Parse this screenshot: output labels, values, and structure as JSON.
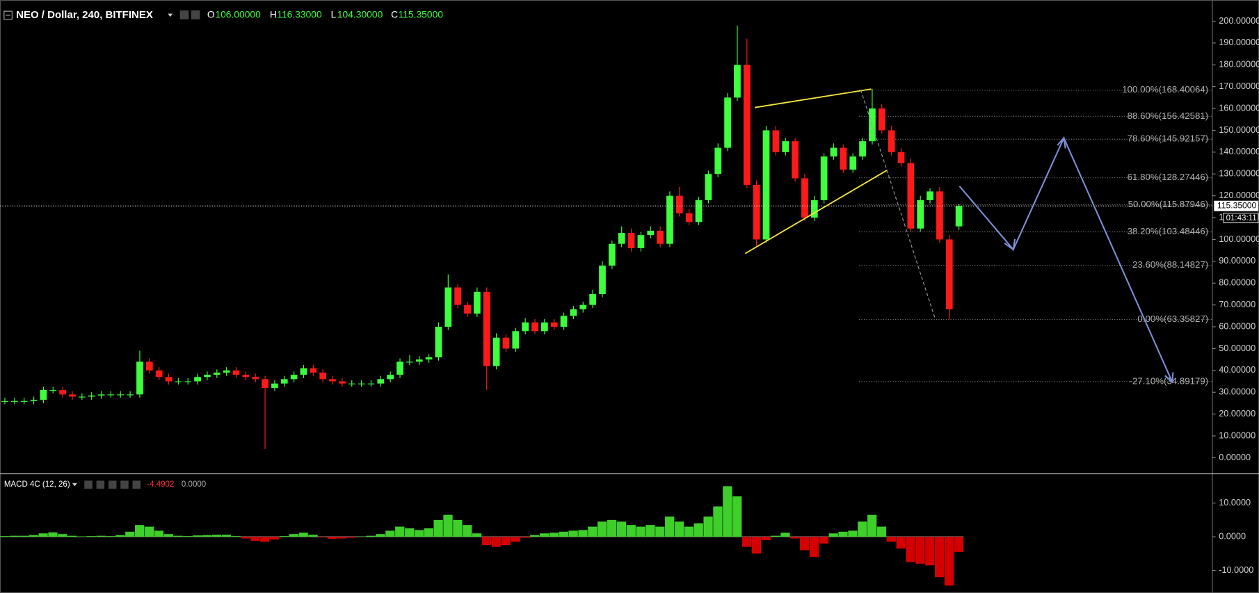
{
  "chart_data": {
    "type": "candlestick",
    "header": {
      "symbol": "NEO / Dollar, 240, BITFINEX",
      "o_label": "O",
      "open": "106.00000",
      "h_label": "H",
      "high": "116.33000",
      "l_label": "L",
      "low": "104.30000",
      "c_label": "C",
      "close": "115.35000"
    },
    "up_color": "#3dff3d",
    "down_color": "#ff1a1a",
    "xlim": [
      -0.5,
      125.3
    ],
    "ylim": [
      -7.2,
      209.7
    ],
    "yticks": [
      {
        "value": 0,
        "label": "0.00000"
      },
      {
        "value": 10,
        "label": "10.00000"
      },
      {
        "value": 20,
        "label": "20.00000"
      },
      {
        "value": 30,
        "label": "30.00000"
      },
      {
        "value": 40,
        "label": "40.00000"
      },
      {
        "value": 50,
        "label": "50.00000"
      },
      {
        "value": 60,
        "label": "60.00000"
      },
      {
        "value": 70,
        "label": "70.00000"
      },
      {
        "value": 80,
        "label": "80.00000"
      },
      {
        "value": 90,
        "label": "90.00000"
      },
      {
        "value": 100,
        "label": "100.00000"
      },
      {
        "value": 110,
        "label": "110.00000"
      },
      {
        "value": 120,
        "label": "120.00000"
      },
      {
        "value": 130,
        "label": "130.00000"
      },
      {
        "value": 140,
        "label": "140.00000"
      },
      {
        "value": 150,
        "label": "150.00000"
      },
      {
        "value": 160,
        "label": "160.00000"
      },
      {
        "value": 170,
        "label": "170.00000"
      },
      {
        "value": 180,
        "label": "180.00000"
      },
      {
        "value": 190,
        "label": "190.00000"
      },
      {
        "value": 200,
        "label": "200.00000"
      }
    ],
    "open": [
      26,
      26,
      26,
      26,
      26.5,
      31,
      31,
      29,
      28,
      28,
      28.5,
      29,
      29,
      29,
      29,
      44,
      40,
      37,
      35,
      35,
      35,
      37,
      38,
      39,
      40,
      38,
      37,
      36,
      32,
      34,
      36,
      38,
      41,
      39,
      36,
      35,
      34,
      34,
      34,
      34,
      36,
      38,
      44,
      44,
      45,
      46,
      60,
      78,
      70,
      66,
      76,
      42,
      55,
      50,
      58,
      62,
      58,
      62,
      60,
      65,
      68,
      70,
      75,
      88,
      98,
      103,
      96,
      102,
      104,
      98,
      120,
      112,
      108,
      118,
      130,
      142,
      165,
      180,
      125,
      100,
      150,
      140,
      145,
      128,
      110,
      118,
      138,
      142,
      132,
      138,
      145,
      160,
      150,
      140,
      135,
      105,
      118,
      122,
      100,
      106
    ],
    "high": [
      27.5,
      27.5,
      27.5,
      28,
      32.5,
      32.5,
      32.5,
      30.5,
      29.5,
      30,
      30.5,
      30.5,
      30.5,
      30.5,
      49,
      45.5,
      41.5,
      38.5,
      36.5,
      36.5,
      38.5,
      39.5,
      40.5,
      41.5,
      41.5,
      39.5,
      38.5,
      37.5,
      35.5,
      37.5,
      39.5,
      42.5,
      42.5,
      40.5,
      37.5,
      36.5,
      35.5,
      35.5,
      35.5,
      37.5,
      39.5,
      45.5,
      47,
      46.5,
      47.5,
      62,
      84,
      79.5,
      71.5,
      78,
      78,
      57,
      56.5,
      59.5,
      64,
      63.5,
      63.5,
      63.5,
      66.5,
      69.5,
      71.5,
      77,
      90,
      99.5,
      106,
      105,
      103.5,
      106,
      106,
      122,
      124,
      114,
      119.5,
      131.5,
      144,
      167,
      198,
      192,
      127,
      152,
      152,
      146.5,
      146.5,
      130,
      120,
      139.5,
      144,
      143.5,
      139.5,
      146.5,
      169,
      162,
      152,
      142,
      137,
      120,
      123.5,
      124,
      102,
      116.33
    ],
    "low": [
      24.5,
      24.5,
      24.5,
      24.5,
      25,
      29.5,
      27.5,
      26.5,
      26.5,
      26.5,
      27,
      27.5,
      27.5,
      27.5,
      27.5,
      38.5,
      35.5,
      33.5,
      33.5,
      33.5,
      33.5,
      35.5,
      36.5,
      37.5,
      36.5,
      35.5,
      34.5,
      4,
      30.5,
      32.5,
      34.5,
      36.5,
      37.5,
      34.5,
      33.5,
      32.5,
      32.5,
      32.5,
      32.5,
      32.5,
      34.5,
      36.5,
      42.5,
      42.5,
      43.5,
      44.5,
      58.5,
      68.5,
      64.5,
      64.5,
      31,
      40.5,
      48.5,
      48.5,
      56.5,
      56.5,
      56.5,
      58.5,
      58.5,
      63.5,
      66.5,
      68.5,
      73.5,
      86.5,
      96.5,
      94.5,
      94.5,
      100.5,
      96.5,
      96.5,
      110.5,
      106.5,
      106.5,
      116.5,
      128.5,
      140.5,
      163.5,
      123.5,
      97,
      98.5,
      138.5,
      138.5,
      126.5,
      108.5,
      108.5,
      116.5,
      136.5,
      130.5,
      130.5,
      136.5,
      143.5,
      148.5,
      138.5,
      133.5,
      103.5,
      103.5,
      116.5,
      98.5,
      63.3,
      104.3
    ],
    "close": [
      26,
      26,
      26,
      26.5,
      31,
      31,
      29,
      28,
      28,
      28.5,
      29,
      29,
      29,
      29,
      44,
      40,
      37,
      35,
      35,
      35,
      37,
      38,
      39,
      40,
      38,
      37,
      36,
      32,
      34,
      36,
      38,
      41,
      39,
      36,
      35,
      34,
      34,
      34,
      34,
      36,
      38,
      44,
      44,
      45,
      46,
      60,
      78,
      70,
      66,
      76,
      42,
      55,
      50,
      58,
      62,
      58,
      62,
      60,
      65,
      68,
      70,
      75,
      88,
      98,
      103,
      96,
      102,
      104,
      98,
      120,
      112,
      108,
      118,
      130,
      142,
      165,
      180,
      125,
      100,
      150,
      140,
      145,
      128,
      110,
      118,
      138,
      142,
      132,
      138,
      145,
      160,
      150,
      140,
      135,
      105,
      118,
      122,
      100,
      68,
      115.35
    ],
    "current_price": {
      "value": 115.35,
      "label": "115.35000"
    },
    "countdown": "01:43:11",
    "fib_levels": [
      {
        "value": 168.40064,
        "label": "100.00%(168.40064)"
      },
      {
        "value": 156.42581,
        "label": "88.60%(156.42581)"
      },
      {
        "value": 145.92157,
        "label": "78.60%(145.92157)"
      },
      {
        "value": 128.27446,
        "label": "61.80%(128.27446)"
      },
      {
        "value": 115.87946,
        "label": "50.00%(115.87946)"
      },
      {
        "value": 103.48446,
        "label": "38.20%(103.48446)"
      },
      {
        "value": 88.14827,
        "label": "23.60%(88.14827)"
      },
      {
        "value": 63.35827,
        "label": "0.00%(63.35827)"
      },
      {
        "value": 34.89179,
        "label": "-27.10%(34.89179)"
      }
    ],
    "macd": {
      "title": "MACD 4C (12, 26)",
      "signal_label": "0.0000",
      "positive_color": "#3ecf2a",
      "negative_color": "#d40000",
      "ylim": [
        -16.7,
        18.8
      ],
      "yticks": [
        {
          "value": 10,
          "label": "10.0000"
        },
        {
          "value": 0,
          "label": "0.0000"
        },
        {
          "value": -10,
          "label": "-10.0000"
        }
      ],
      "values": [
        0.2,
        0.3,
        0.3,
        0.5,
        1.0,
        1.3,
        0.8,
        0.3,
        0.1,
        0.2,
        0.3,
        0.2,
        0.5,
        1.5,
        3.5,
        3.0,
        1.8,
        0.8,
        0.3,
        0.2,
        0.4,
        0.5,
        0.6,
        0.6,
        0.2,
        -0.5,
        -1.2,
        -1.5,
        -0.8,
        0.2,
        0.8,
        1.2,
        0.6,
        -0.2,
        -0.6,
        -0.5,
        -0.3,
        0.1,
        0.3,
        0.8,
        1.8,
        3.0,
        2.5,
        2.0,
        2.5,
        5.0,
        6.5,
        5.0,
        3.5,
        1.0,
        -2.5,
        -3.0,
        -2.5,
        -1.5,
        -0.3,
        0.5,
        1.0,
        1.2,
        1.5,
        1.8,
        2.0,
        3.0,
        4.5,
        5.0,
        4.5,
        3.5,
        3.0,
        3.5,
        3.0,
        6.0,
        4.5,
        3.0,
        4.0,
        6.0,
        9.0,
        15.0,
        12.0,
        -3.0,
        -5.0,
        -1.0,
        0.3,
        1.2,
        -0.5,
        -4.0,
        -6.0,
        -2.0,
        1.0,
        1.5,
        1.8,
        4.5,
        6.5,
        3.0,
        -1.5,
        -3.5,
        -7.5,
        -8.0,
        -8.5,
        -12.0,
        -14.5,
        -4.4902
      ]
    }
  }
}
